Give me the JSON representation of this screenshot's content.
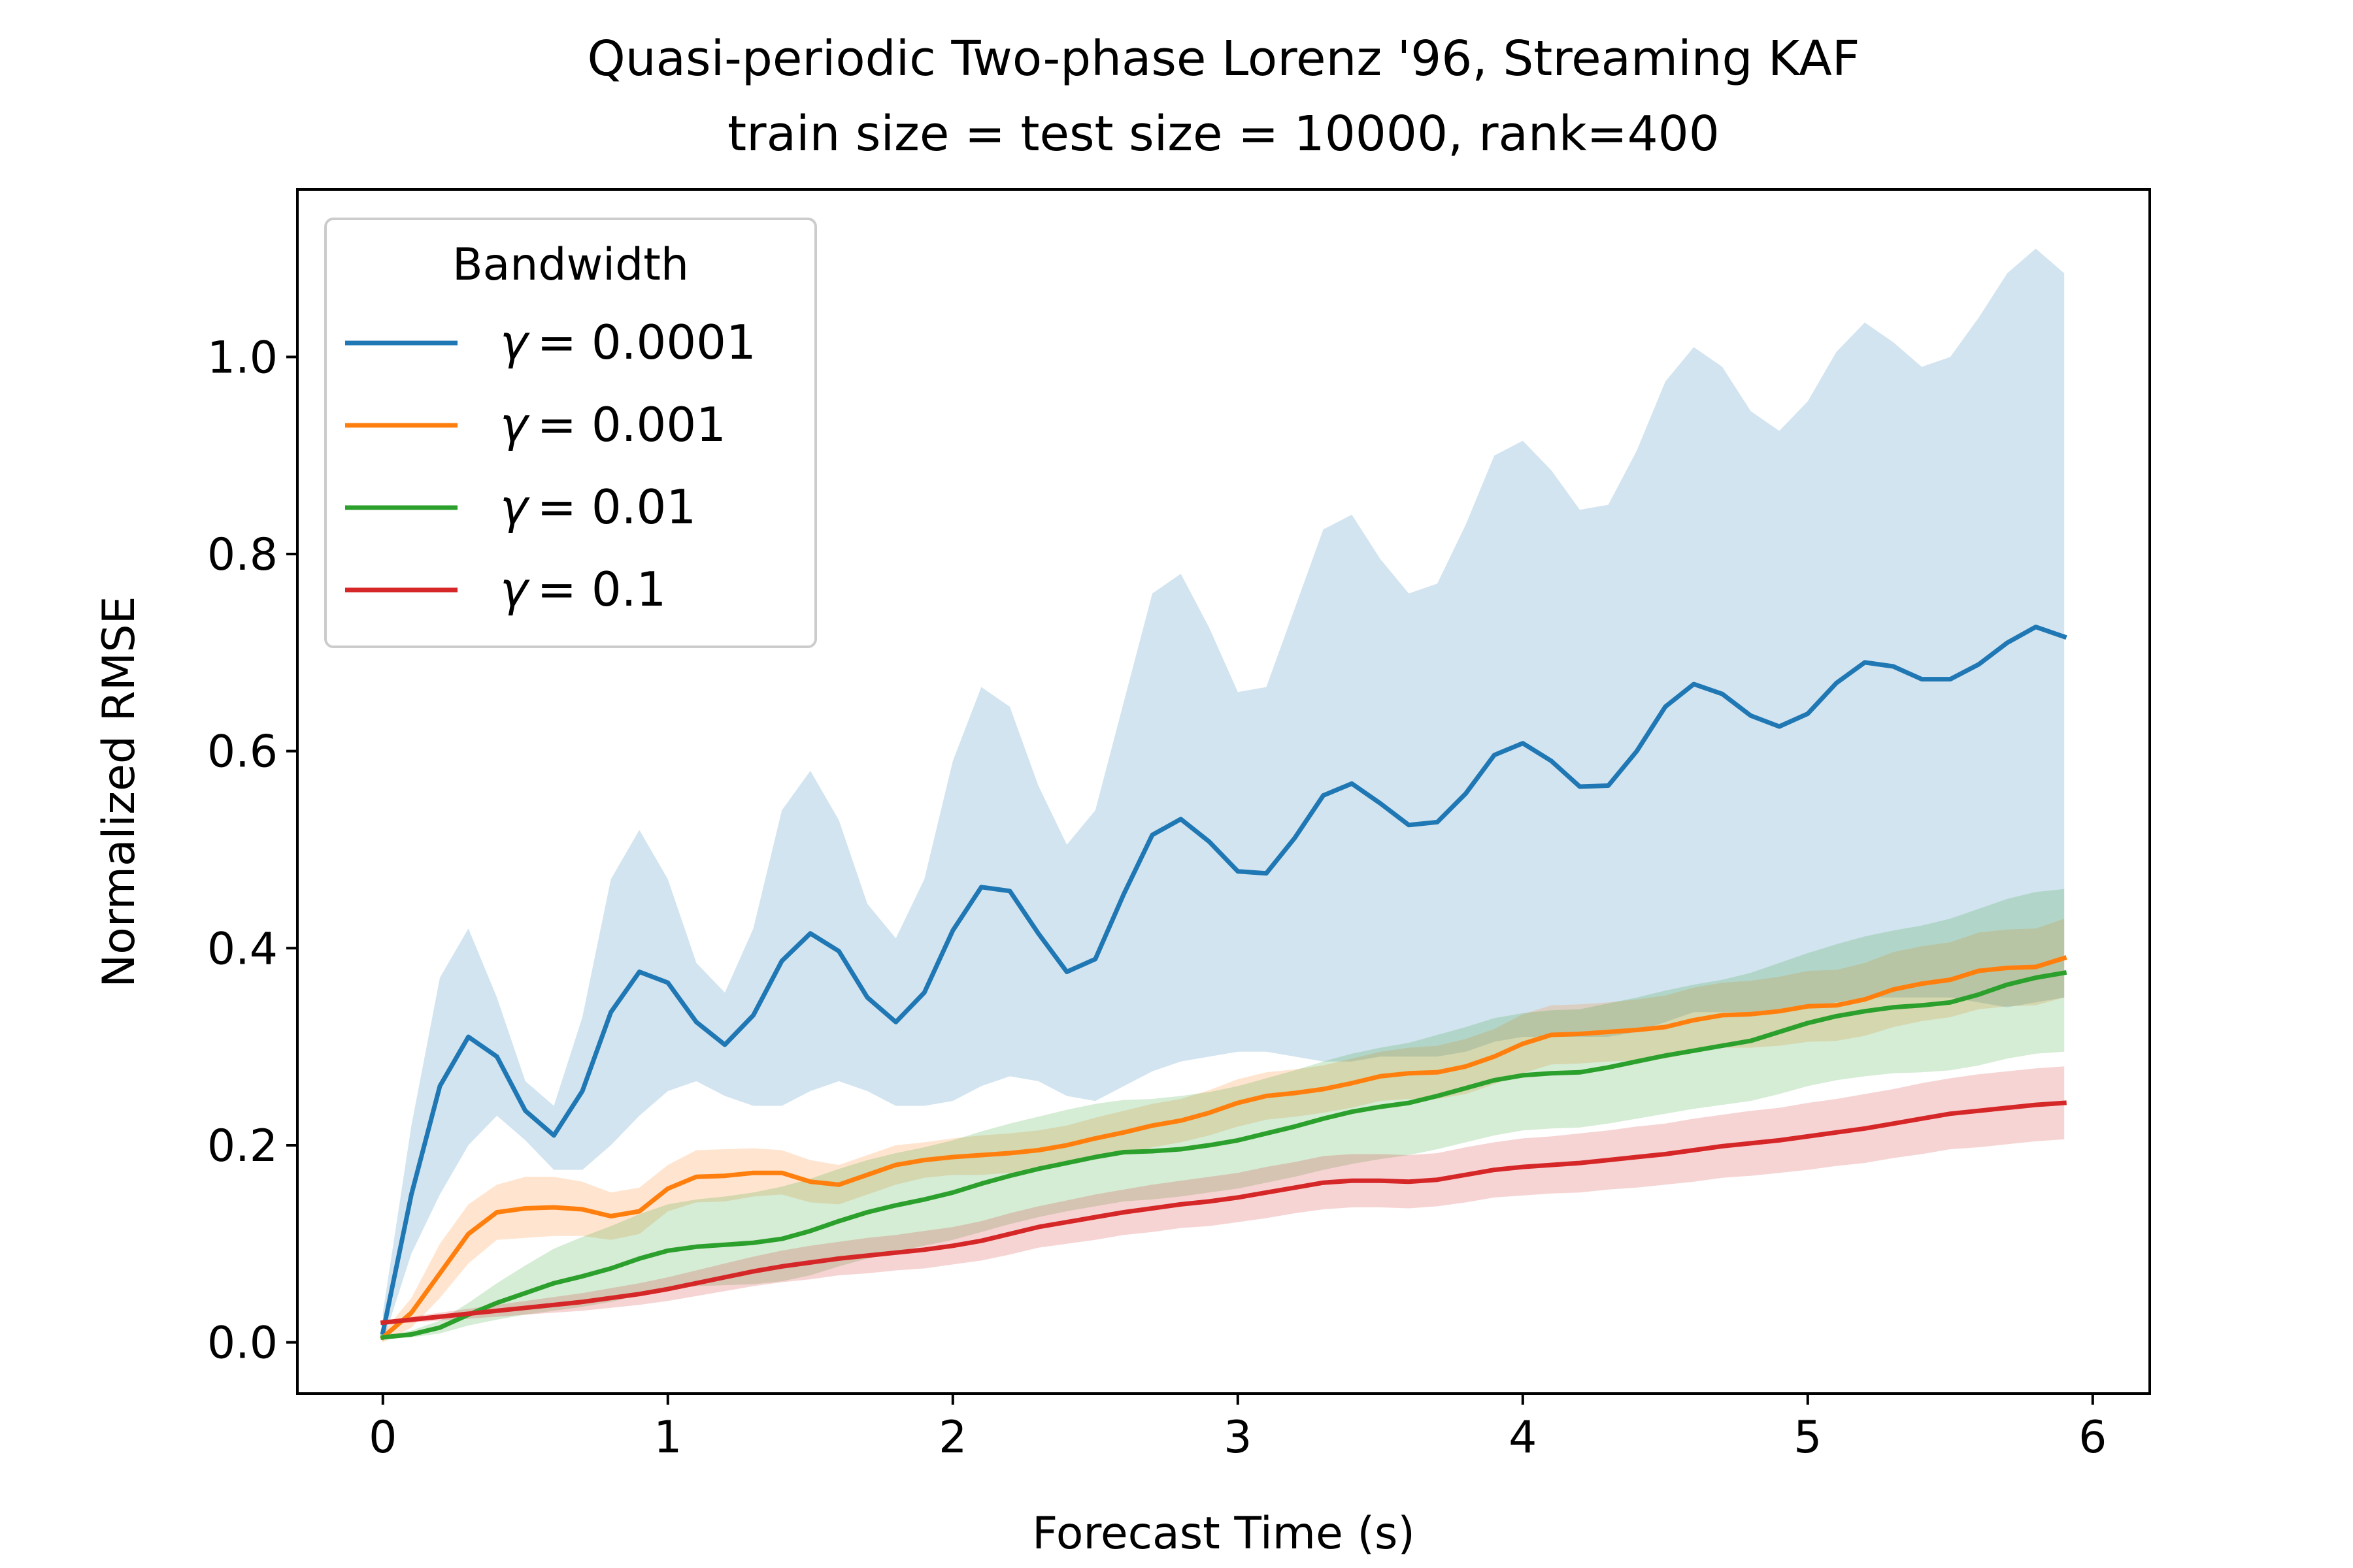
{
  "chart_data": {
    "type": "line",
    "title": "Quasi-periodic Two-phase Lorenz '96, Streaming KAF",
    "subtitle": "train size = test size = 10000, rank=400",
    "xlabel": "Forecast Time (s)",
    "ylabel": "Normalized RMSE",
    "xlim": [
      -0.3,
      6.2
    ],
    "ylim": [
      -0.052,
      1.17
    ],
    "xticks": [
      0,
      1,
      2,
      3,
      4,
      5,
      6
    ],
    "xtick_labels": [
      "0",
      "1",
      "2",
      "3",
      "4",
      "5",
      "6"
    ],
    "yticks": [
      0.0,
      0.2,
      0.4,
      0.6,
      0.8,
      1.0
    ],
    "ytick_labels": [
      "0.0",
      "0.2",
      "0.4",
      "0.6",
      "0.8",
      "1.0"
    ],
    "grid": false,
    "legend_title": "Bandwidth",
    "legend_placement": "upper-left",
    "x": [
      0,
      0.1,
      0.2,
      0.3,
      0.4,
      0.5,
      0.6,
      0.7,
      0.8,
      0.9,
      1.0,
      1.1,
      1.2,
      1.3,
      1.4,
      1.5,
      1.6,
      1.7,
      1.8,
      1.9,
      2.0,
      2.1,
      2.2,
      2.3,
      2.4,
      2.5,
      2.6,
      2.7,
      2.8,
      2.9,
      3.0,
      3.1,
      3.2,
      3.3,
      3.4,
      3.5,
      3.6,
      3.7,
      3.8,
      3.9,
      4.0,
      4.1,
      4.2,
      4.3,
      4.4,
      4.5,
      4.6,
      4.7,
      4.8,
      4.9,
      5.0,
      5.1,
      5.2,
      5.3,
      5.4,
      5.5,
      5.6,
      5.7,
      5.8,
      5.9
    ],
    "series": [
      {
        "name": "γ = 0.0001",
        "legend_symbol": "γ",
        "legend_value": "= 0.0001",
        "color": "#1f77b4",
        "values": [
          0.01,
          0.15,
          0.26,
          0.31,
          0.29,
          0.235,
          0.21,
          0.255,
          0.335,
          0.376,
          0.365,
          0.325,
          0.302,
          0.332,
          0.387,
          0.415,
          0.397,
          0.35,
          0.325,
          0.355,
          0.418,
          0.462,
          0.458,
          0.415,
          0.376,
          0.389,
          0.455,
          0.515,
          0.531,
          0.508,
          0.478,
          0.476,
          0.512,
          0.555,
          0.567,
          0.547,
          0.525,
          0.528,
          0.557,
          0.596,
          0.608,
          0.59,
          0.564,
          0.565,
          0.6,
          0.645,
          0.668,
          0.658,
          0.636,
          0.625,
          0.638,
          0.669,
          0.69,
          0.686,
          0.673,
          0.673,
          0.688,
          0.71,
          0.726,
          0.716
        ],
        "upper": [
          0.03,
          0.22,
          0.37,
          0.42,
          0.35,
          0.265,
          0.24,
          0.33,
          0.47,
          0.52,
          0.47,
          0.385,
          0.355,
          0.42,
          0.54,
          0.58,
          0.53,
          0.445,
          0.41,
          0.47,
          0.59,
          0.665,
          0.645,
          0.565,
          0.505,
          0.54,
          0.65,
          0.76,
          0.78,
          0.725,
          0.66,
          0.665,
          0.745,
          0.825,
          0.84,
          0.795,
          0.76,
          0.77,
          0.83,
          0.9,
          0.915,
          0.885,
          0.845,
          0.85,
          0.905,
          0.975,
          1.01,
          0.99,
          0.945,
          0.925,
          0.955,
          1.005,
          1.035,
          1.015,
          0.99,
          1.0,
          1.04,
          1.085,
          1.11,
          1.085
        ],
        "lower": [
          0.0,
          0.09,
          0.15,
          0.2,
          0.23,
          0.205,
          0.175,
          0.175,
          0.2,
          0.23,
          0.255,
          0.265,
          0.25,
          0.24,
          0.24,
          0.255,
          0.265,
          0.255,
          0.24,
          0.24,
          0.245,
          0.26,
          0.27,
          0.265,
          0.25,
          0.245,
          0.26,
          0.275,
          0.285,
          0.29,
          0.295,
          0.295,
          0.29,
          0.285,
          0.285,
          0.29,
          0.29,
          0.29,
          0.295,
          0.305,
          0.31,
          0.31,
          0.31,
          0.31,
          0.315,
          0.325,
          0.335,
          0.335,
          0.335,
          0.335,
          0.34,
          0.345,
          0.35,
          0.35,
          0.35,
          0.35,
          0.345,
          0.34,
          0.345,
          0.35
        ]
      },
      {
        "name": "γ = 0.001",
        "legend_symbol": "γ",
        "legend_value": "= 0.001",
        "color": "#ff7f0e",
        "values": [
          0.005,
          0.03,
          0.07,
          0.11,
          0.132,
          0.136,
          0.137,
          0.135,
          0.128,
          0.133,
          0.156,
          0.168,
          0.169,
          0.172,
          0.172,
          0.163,
          0.16,
          0.17,
          0.18,
          0.185,
          0.188,
          0.19,
          0.192,
          0.195,
          0.2,
          0.207,
          0.213,
          0.22,
          0.225,
          0.233,
          0.243,
          0.25,
          0.253,
          0.257,
          0.263,
          0.27,
          0.273,
          0.274,
          0.28,
          0.29,
          0.303,
          0.312,
          0.313,
          0.315,
          0.317,
          0.32,
          0.327,
          0.332,
          0.333,
          0.336,
          0.341,
          0.342,
          0.348,
          0.358,
          0.364,
          0.368,
          0.377,
          0.38,
          0.381,
          0.39
        ],
        "upper": [
          0.01,
          0.045,
          0.1,
          0.14,
          0.16,
          0.168,
          0.168,
          0.163,
          0.152,
          0.157,
          0.18,
          0.195,
          0.196,
          0.197,
          0.195,
          0.185,
          0.18,
          0.19,
          0.2,
          0.203,
          0.207,
          0.21,
          0.212,
          0.215,
          0.22,
          0.228,
          0.235,
          0.242,
          0.247,
          0.256,
          0.267,
          0.274,
          0.277,
          0.281,
          0.288,
          0.295,
          0.299,
          0.301,
          0.308,
          0.318,
          0.333,
          0.342,
          0.343,
          0.345,
          0.348,
          0.352,
          0.36,
          0.365,
          0.367,
          0.371,
          0.377,
          0.378,
          0.385,
          0.396,
          0.402,
          0.406,
          0.416,
          0.419,
          0.42,
          0.43
        ],
        "lower": [
          0.0,
          0.015,
          0.045,
          0.08,
          0.104,
          0.106,
          0.108,
          0.108,
          0.104,
          0.11,
          0.133,
          0.142,
          0.143,
          0.148,
          0.15,
          0.142,
          0.14,
          0.15,
          0.16,
          0.167,
          0.17,
          0.17,
          0.172,
          0.175,
          0.18,
          0.186,
          0.191,
          0.198,
          0.203,
          0.21,
          0.219,
          0.226,
          0.229,
          0.233,
          0.238,
          0.245,
          0.247,
          0.247,
          0.252,
          0.262,
          0.273,
          0.282,
          0.283,
          0.285,
          0.286,
          0.288,
          0.294,
          0.299,
          0.299,
          0.301,
          0.305,
          0.306,
          0.311,
          0.32,
          0.326,
          0.33,
          0.338,
          0.341,
          0.342,
          0.35
        ]
      },
      {
        "name": "γ = 0.01",
        "legend_symbol": "γ",
        "legend_value": "= 0.01",
        "color": "#2ca02c",
        "values": [
          0.005,
          0.008,
          0.015,
          0.028,
          0.04,
          0.05,
          0.06,
          0.067,
          0.075,
          0.085,
          0.093,
          0.097,
          0.099,
          0.101,
          0.105,
          0.113,
          0.123,
          0.132,
          0.139,
          0.145,
          0.152,
          0.161,
          0.169,
          0.176,
          0.182,
          0.188,
          0.193,
          0.194,
          0.196,
          0.2,
          0.205,
          0.212,
          0.219,
          0.227,
          0.234,
          0.239,
          0.243,
          0.25,
          0.258,
          0.266,
          0.271,
          0.273,
          0.274,
          0.279,
          0.285,
          0.291,
          0.296,
          0.301,
          0.306,
          0.315,
          0.324,
          0.331,
          0.336,
          0.34,
          0.342,
          0.345,
          0.353,
          0.363,
          0.37,
          0.375
        ],
        "upper": [
          0.006,
          0.012,
          0.022,
          0.04,
          0.06,
          0.078,
          0.095,
          0.107,
          0.118,
          0.13,
          0.14,
          0.145,
          0.148,
          0.152,
          0.158,
          0.166,
          0.176,
          0.185,
          0.192,
          0.198,
          0.205,
          0.214,
          0.222,
          0.229,
          0.236,
          0.242,
          0.246,
          0.247,
          0.25,
          0.254,
          0.26,
          0.268,
          0.276,
          0.285,
          0.293,
          0.299,
          0.304,
          0.312,
          0.32,
          0.329,
          0.334,
          0.337,
          0.338,
          0.344,
          0.35,
          0.357,
          0.363,
          0.368,
          0.375,
          0.385,
          0.395,
          0.404,
          0.412,
          0.418,
          0.423,
          0.43,
          0.44,
          0.45,
          0.457,
          0.46
        ],
        "lower": [
          0.004,
          0.005,
          0.009,
          0.017,
          0.023,
          0.028,
          0.032,
          0.036,
          0.041,
          0.048,
          0.054,
          0.057,
          0.058,
          0.059,
          0.062,
          0.068,
          0.077,
          0.085,
          0.092,
          0.098,
          0.104,
          0.112,
          0.12,
          0.127,
          0.133,
          0.138,
          0.143,
          0.145,
          0.148,
          0.152,
          0.156,
          0.162,
          0.168,
          0.175,
          0.181,
          0.186,
          0.19,
          0.196,
          0.203,
          0.21,
          0.215,
          0.217,
          0.218,
          0.222,
          0.227,
          0.232,
          0.237,
          0.241,
          0.245,
          0.252,
          0.26,
          0.266,
          0.27,
          0.273,
          0.274,
          0.276,
          0.281,
          0.288,
          0.293,
          0.295
        ]
      },
      {
        "name": "γ = 0.1",
        "legend_symbol": "γ",
        "legend_value": "= 0.1",
        "color": "#d62728",
        "values": [
          0.02,
          0.023,
          0.026,
          0.029,
          0.032,
          0.035,
          0.038,
          0.041,
          0.045,
          0.049,
          0.054,
          0.06,
          0.066,
          0.072,
          0.077,
          0.081,
          0.085,
          0.088,
          0.091,
          0.094,
          0.098,
          0.103,
          0.11,
          0.117,
          0.122,
          0.127,
          0.132,
          0.136,
          0.14,
          0.143,
          0.147,
          0.152,
          0.157,
          0.162,
          0.164,
          0.164,
          0.163,
          0.165,
          0.17,
          0.175,
          0.178,
          0.18,
          0.182,
          0.185,
          0.188,
          0.191,
          0.195,
          0.199,
          0.202,
          0.205,
          0.209,
          0.213,
          0.217,
          0.222,
          0.227,
          0.232,
          0.235,
          0.238,
          0.241,
          0.243
        ],
        "upper": [
          0.022,
          0.026,
          0.03,
          0.034,
          0.038,
          0.042,
          0.046,
          0.05,
          0.055,
          0.06,
          0.066,
          0.073,
          0.08,
          0.087,
          0.093,
          0.098,
          0.102,
          0.106,
          0.109,
          0.113,
          0.117,
          0.123,
          0.131,
          0.138,
          0.144,
          0.15,
          0.155,
          0.16,
          0.164,
          0.168,
          0.172,
          0.178,
          0.183,
          0.189,
          0.191,
          0.191,
          0.19,
          0.192,
          0.198,
          0.203,
          0.207,
          0.209,
          0.212,
          0.215,
          0.219,
          0.222,
          0.227,
          0.231,
          0.235,
          0.238,
          0.243,
          0.247,
          0.252,
          0.257,
          0.263,
          0.268,
          0.272,
          0.275,
          0.278,
          0.28
        ],
        "lower": [
          0.018,
          0.02,
          0.022,
          0.024,
          0.026,
          0.028,
          0.03,
          0.032,
          0.035,
          0.038,
          0.042,
          0.047,
          0.052,
          0.057,
          0.061,
          0.064,
          0.068,
          0.07,
          0.073,
          0.075,
          0.079,
          0.083,
          0.089,
          0.096,
          0.1,
          0.104,
          0.109,
          0.112,
          0.116,
          0.118,
          0.122,
          0.126,
          0.131,
          0.135,
          0.137,
          0.137,
          0.136,
          0.138,
          0.142,
          0.147,
          0.149,
          0.151,
          0.152,
          0.155,
          0.157,
          0.16,
          0.163,
          0.167,
          0.169,
          0.172,
          0.175,
          0.179,
          0.182,
          0.187,
          0.191,
          0.196,
          0.198,
          0.201,
          0.204,
          0.206
        ]
      }
    ]
  }
}
